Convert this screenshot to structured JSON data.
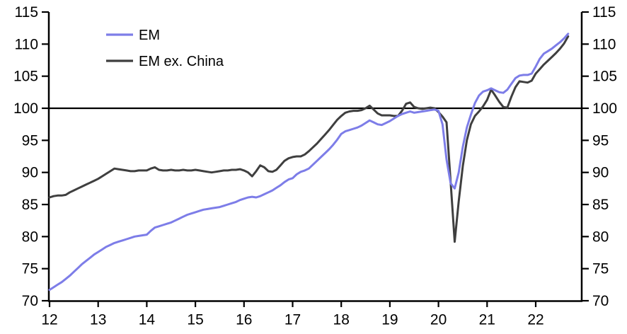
{
  "chart_data": {
    "type": "line",
    "title": "",
    "frequency": "monthly",
    "x_start_year": 2012,
    "x_axis_tick_labels": [
      "12",
      "13",
      "14",
      "15",
      "16",
      "17",
      "18",
      "19",
      "20",
      "21",
      "22"
    ],
    "y_axis_ticks": [
      70,
      75,
      80,
      85,
      90,
      95,
      100,
      105,
      110,
      115
    ],
    "ylim": [
      70,
      115
    ],
    "xlim_years": [
      12,
      22.95
    ],
    "reference_line_value": 100,
    "grid": false,
    "legend_position": "top-left-inside",
    "axis_color": "#000000",
    "reference_line_color": "#000000",
    "series": [
      {
        "name": "EM",
        "color": "#7D7DE8",
        "values": [
          71.7,
          72.1,
          72.5,
          72.9,
          73.4,
          73.9,
          74.5,
          75.1,
          75.7,
          76.2,
          76.7,
          77.2,
          77.6,
          78.0,
          78.4,
          78.7,
          79.0,
          79.2,
          79.4,
          79.6,
          79.8,
          80.0,
          80.1,
          80.2,
          80.3,
          80.9,
          81.4,
          81.6,
          81.8,
          82.0,
          82.2,
          82.5,
          82.8,
          83.1,
          83.4,
          83.6,
          83.8,
          84.0,
          84.2,
          84.3,
          84.4,
          84.5,
          84.6,
          84.8,
          85.0,
          85.2,
          85.4,
          85.7,
          85.9,
          86.1,
          86.2,
          86.1,
          86.3,
          86.6,
          86.9,
          87.2,
          87.6,
          88.0,
          88.5,
          88.9,
          89.1,
          89.7,
          90.1,
          90.3,
          90.6,
          91.2,
          91.8,
          92.4,
          93.0,
          93.6,
          94.3,
          95.1,
          96.0,
          96.4,
          96.6,
          96.8,
          97.0,
          97.3,
          97.7,
          98.1,
          97.8,
          97.5,
          97.4,
          97.7,
          98.0,
          98.4,
          98.8,
          99.1,
          99.3,
          99.5,
          99.3,
          99.4,
          99.5,
          99.6,
          99.7,
          99.8,
          99.6,
          97.5,
          92.0,
          88.3,
          87.5,
          90.0,
          94.0,
          97.0,
          99.0,
          100.8,
          102.0,
          102.6,
          102.8,
          103.1,
          102.8,
          102.5,
          102.4,
          102.9,
          103.8,
          104.7,
          105.1,
          105.2,
          105.2,
          105.4,
          106.5,
          107.7,
          108.5,
          108.9,
          109.3,
          109.8,
          110.3,
          110.9,
          111.6
        ]
      },
      {
        "name": "EM ex. China",
        "color": "#3F3F3F",
        "values": [
          86.1,
          86.3,
          86.4,
          86.4,
          86.5,
          86.9,
          87.2,
          87.5,
          87.8,
          88.1,
          88.4,
          88.7,
          89.0,
          89.4,
          89.8,
          90.2,
          90.6,
          90.5,
          90.4,
          90.3,
          90.2,
          90.2,
          90.3,
          90.3,
          90.3,
          90.6,
          90.8,
          90.4,
          90.3,
          90.3,
          90.4,
          90.3,
          90.3,
          90.4,
          90.3,
          90.3,
          90.4,
          90.3,
          90.2,
          90.1,
          90.0,
          90.1,
          90.2,
          90.3,
          90.3,
          90.4,
          90.4,
          90.5,
          90.3,
          90.0,
          89.4,
          90.2,
          91.1,
          90.8,
          90.2,
          90.1,
          90.4,
          91.1,
          91.8,
          92.2,
          92.4,
          92.5,
          92.5,
          92.8,
          93.3,
          93.9,
          94.5,
          95.2,
          95.9,
          96.6,
          97.4,
          98.2,
          98.8,
          99.3,
          99.5,
          99.6,
          99.6,
          99.7,
          100.0,
          100.4,
          99.8,
          99.2,
          98.9,
          98.9,
          98.9,
          98.8,
          98.8,
          99.6,
          100.7,
          100.9,
          100.2,
          100.0,
          99.9,
          100.0,
          100.1,
          100.0,
          99.4,
          98.7,
          97.8,
          88.5,
          79.2,
          85.5,
          91.0,
          95.0,
          97.5,
          98.8,
          99.5,
          100.3,
          101.3,
          102.9,
          102.0,
          101.0,
          100.2,
          100.1,
          101.8,
          103.3,
          104.2,
          104.1,
          104.0,
          104.3,
          105.4,
          106.1,
          106.8,
          107.4,
          108.0,
          108.6,
          109.3,
          110.1,
          111.2
        ]
      }
    ]
  }
}
